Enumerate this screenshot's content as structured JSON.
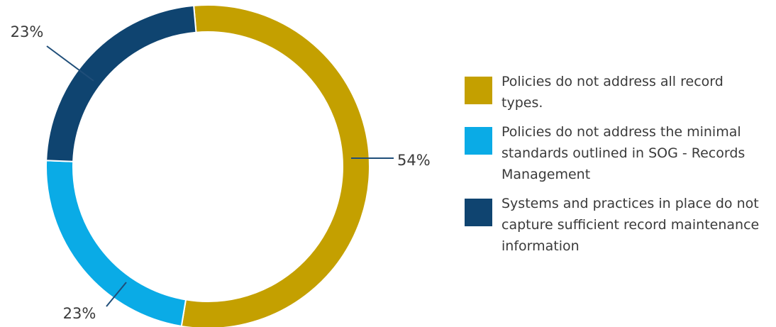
{
  "chart_data": {
    "type": "pie",
    "variant": "donut",
    "title": "",
    "categories": [
      "Policies do not address all record types.",
      "Policies do not address the minimal standards outlined in SOG - Records Management",
      "Systems and practices in place do not capture sufficient record maintenance information"
    ],
    "values": [
      54,
      23,
      23
    ],
    "data_labels": [
      "54%",
      "23%",
      "23%"
    ],
    "colors": [
      "#C4A000",
      "#0AABE6",
      "#0F4470"
    ],
    "legend_position": "right"
  }
}
